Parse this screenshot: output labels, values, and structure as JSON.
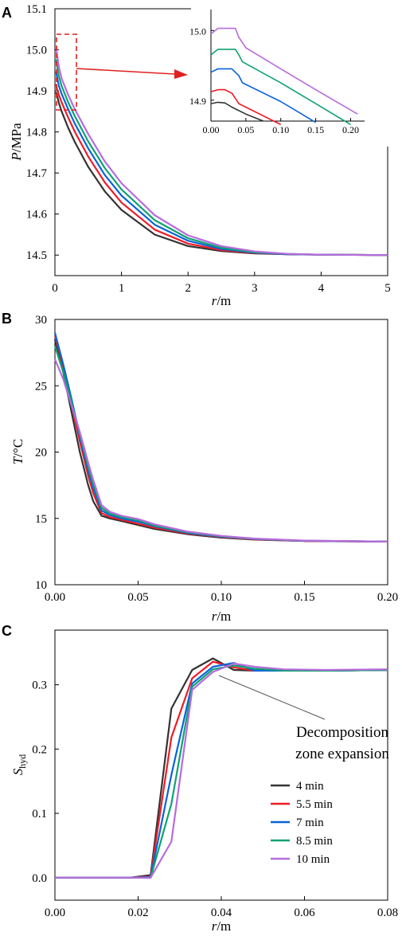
{
  "series_colors": [
    "#333333",
    "#ee1c25",
    "#0a63d8",
    "#0ea271",
    "#b86bdd"
  ],
  "panels": {
    "A": {
      "letter": "A",
      "xlabel_italic": "r",
      "xlabel_rest": "/m",
      "ylabel_italic": "P",
      "ylabel_rest": "/MPa"
    },
    "B": {
      "letter": "B",
      "xlabel_italic": "r",
      "xlabel_rest": "/m",
      "ylabel_italic": "T",
      "ylabel_rest": "/°C"
    },
    "C": {
      "letter": "C",
      "xlabel_italic": "r",
      "xlabel_rest": "/m",
      "ylabel_main": "S",
      "ylabel_sub": "hyd"
    }
  },
  "annotation": {
    "line1": "Decomposition",
    "line2": "zone expansion"
  },
  "chart_data": [
    {
      "id": "A",
      "type": "line",
      "xlim": [
        0,
        5
      ],
      "ylim": [
        14.45,
        15.1
      ],
      "xticks": [
        "0",
        "1",
        "2",
        "3",
        "4",
        "5"
      ],
      "yticks": [
        "14.5",
        "14.6",
        "14.7",
        "14.8",
        "14.9",
        "15.0",
        "15.1"
      ],
      "grid": false,
      "series": [
        {
          "name": "4 min",
          "x": [
            0,
            0.02,
            0.03,
            0.06,
            0.1,
            0.2,
            0.3,
            0.5,
            0.75,
            1,
            1.5,
            2,
            2.5,
            3,
            3.5,
            4,
            5
          ],
          "y": [
            14.895,
            14.895,
            14.89,
            14.87,
            14.85,
            14.81,
            14.775,
            14.715,
            14.655,
            14.61,
            14.55,
            14.522,
            14.51,
            14.504,
            14.502,
            14.501,
            14.5
          ]
        },
        {
          "name": "5.5 min",
          "x": [
            0,
            0.02,
            0.03,
            0.06,
            0.1,
            0.2,
            0.3,
            0.5,
            0.75,
            1,
            1.5,
            2,
            2.5,
            3,
            3.5,
            4,
            5
          ],
          "y": [
            14.915,
            14.915,
            14.905,
            14.89,
            14.872,
            14.835,
            14.8,
            14.74,
            14.677,
            14.628,
            14.562,
            14.528,
            14.512,
            14.505,
            14.502,
            14.501,
            14.5
          ]
        },
        {
          "name": "7 min",
          "x": [
            0,
            0.02,
            0.03,
            0.06,
            0.1,
            0.2,
            0.3,
            0.5,
            0.75,
            1,
            1.5,
            2,
            2.5,
            3,
            3.5,
            4,
            5
          ],
          "y": [
            14.945,
            14.945,
            14.935,
            14.912,
            14.893,
            14.855,
            14.82,
            14.76,
            14.695,
            14.645,
            14.574,
            14.535,
            14.515,
            14.506,
            14.502,
            14.501,
            14.5
          ]
        },
        {
          "name": "8.5 min",
          "x": [
            0,
            0.02,
            0.03,
            0.06,
            0.1,
            0.2,
            0.3,
            0.5,
            0.75,
            1,
            1.5,
            2,
            2.5,
            3,
            3.5,
            4,
            5
          ],
          "y": [
            14.975,
            14.975,
            14.962,
            14.935,
            14.912,
            14.872,
            14.838,
            14.777,
            14.712,
            14.66,
            14.585,
            14.541,
            14.518,
            14.507,
            14.503,
            14.501,
            14.5
          ]
        },
        {
          "name": "10 min",
          "x": [
            0,
            0.02,
            0.03,
            0.06,
            0.1,
            0.2,
            0.3,
            0.5,
            0.75,
            1,
            1.5,
            2,
            2.5,
            3,
            3.5,
            4,
            5
          ],
          "y": [
            15.005,
            15.005,
            14.99,
            14.958,
            14.93,
            14.89,
            14.855,
            14.795,
            14.728,
            14.675,
            14.597,
            14.548,
            14.522,
            14.509,
            14.503,
            14.501,
            14.5
          ]
        }
      ]
    },
    {
      "id": "A-inset",
      "type": "line",
      "xlim": [
        0,
        0.22
      ],
      "ylim": [
        14.87,
        15.03
      ],
      "xticks": [
        "0.00",
        "0.05",
        "0.10",
        "0.15",
        "0.20"
      ],
      "yticks": [
        "14.9",
        "15.0"
      ],
      "series": [
        {
          "name": "4 min",
          "x": [
            0,
            0.01,
            0.02,
            0.03,
            0.05,
            0.075
          ],
          "y": [
            14.895,
            14.897,
            14.896,
            14.89,
            14.88,
            14.87
          ]
        },
        {
          "name": "5.5 min",
          "x": [
            0,
            0.01,
            0.02,
            0.03,
            0.04,
            0.06,
            0.1
          ],
          "y": [
            14.912,
            14.915,
            14.915,
            14.91,
            14.895,
            14.885,
            14.865
          ]
        },
        {
          "name": "7 min",
          "x": [
            0,
            0.01,
            0.03,
            0.04,
            0.045,
            0.1,
            0.15
          ],
          "y": [
            14.94,
            14.945,
            14.945,
            14.935,
            14.925,
            14.898,
            14.868
          ]
        },
        {
          "name": "8.5 min",
          "x": [
            0,
            0.01,
            0.035,
            0.04,
            0.045,
            0.1,
            0.15,
            0.2
          ],
          "y": [
            14.965,
            14.973,
            14.973,
            14.965,
            14.955,
            14.925,
            14.895,
            14.865
          ]
        },
        {
          "name": "10 min",
          "x": [
            0,
            0.01,
            0.035,
            0.04,
            0.05,
            0.1,
            0.15,
            0.21
          ],
          "y": [
            14.995,
            15.003,
            15.003,
            14.99,
            14.975,
            14.945,
            14.915,
            14.88
          ]
        }
      ]
    },
    {
      "id": "B",
      "type": "line",
      "xlim": [
        0,
        0.2
      ],
      "ylim": [
        10,
        30
      ],
      "xticks": [
        "0.00",
        "0.05",
        "0.10",
        "0.15",
        "0.20"
      ],
      "yticks": [
        "10",
        "15",
        "20",
        "25",
        "30"
      ],
      "grid": false,
      "series": [
        {
          "name": "4 min",
          "x": [
            0,
            0.005,
            0.01,
            0.015,
            0.02,
            0.023,
            0.028,
            0.033,
            0.04,
            0.05,
            0.06,
            0.08,
            0.1,
            0.12,
            0.15,
            0.2
          ],
          "y": [
            28.5,
            26.0,
            23.0,
            20.0,
            17.5,
            16.3,
            15.2,
            15.0,
            14.8,
            14.5,
            14.2,
            13.8,
            13.55,
            13.4,
            13.3,
            13.25
          ]
        },
        {
          "name": "5.5 min",
          "x": [
            0,
            0.005,
            0.01,
            0.015,
            0.02,
            0.023,
            0.028,
            0.033,
            0.04,
            0.05,
            0.06,
            0.08,
            0.1,
            0.12,
            0.15,
            0.2
          ],
          "y": [
            28.8,
            26.4,
            23.6,
            20.8,
            18.2,
            16.9,
            15.4,
            15.1,
            14.9,
            14.6,
            14.3,
            13.85,
            13.6,
            13.42,
            13.3,
            13.25
          ]
        },
        {
          "name": "7 min",
          "x": [
            0,
            0.005,
            0.01,
            0.015,
            0.02,
            0.023,
            0.028,
            0.033,
            0.04,
            0.05,
            0.06,
            0.08,
            0.1,
            0.12,
            0.15,
            0.2
          ],
          "y": [
            29.0,
            26.6,
            24.0,
            21.2,
            18.6,
            17.3,
            15.6,
            15.25,
            15.0,
            14.75,
            14.4,
            13.9,
            13.62,
            13.44,
            13.31,
            13.25
          ]
        },
        {
          "name": "8.5 min",
          "x": [
            0,
            0.005,
            0.01,
            0.015,
            0.02,
            0.023,
            0.028,
            0.033,
            0.04,
            0.05,
            0.06,
            0.08,
            0.1,
            0.12,
            0.15,
            0.2
          ],
          "y": [
            28.0,
            26.0,
            23.8,
            21.4,
            18.9,
            17.6,
            15.8,
            15.35,
            15.1,
            14.85,
            14.45,
            13.95,
            13.65,
            13.46,
            13.32,
            13.25
          ]
        },
        {
          "name": "10 min",
          "x": [
            0,
            0.005,
            0.01,
            0.015,
            0.02,
            0.023,
            0.028,
            0.033,
            0.04,
            0.05,
            0.06,
            0.08,
            0.1,
            0.12,
            0.15,
            0.2
          ],
          "y": [
            27.0,
            25.5,
            23.5,
            21.5,
            19.2,
            17.9,
            16.0,
            15.5,
            15.2,
            14.95,
            14.55,
            14.0,
            13.68,
            13.48,
            13.33,
            13.25
          ]
        }
      ]
    },
    {
      "id": "C",
      "type": "line",
      "xlim": [
        0,
        0.08
      ],
      "ylim": [
        -0.035,
        0.385
      ],
      "xticks": [
        "0.00",
        "0.02",
        "0.04",
        "0.06",
        "0.08"
      ],
      "yticks": [
        "0.0",
        "0.1",
        "0.2",
        "0.3"
      ],
      "grid": false,
      "legend_position": "lower-right",
      "series": [
        {
          "name": "4 min",
          "x": [
            0,
            0.018,
            0.023,
            0.028,
            0.033,
            0.038,
            0.043,
            0.048,
            0.055,
            0.065,
            0.08
          ],
          "y": [
            0,
            0,
            0.004,
            0.263,
            0.323,
            0.341,
            0.323,
            0.322,
            0.322,
            0.322,
            0.323
          ]
        },
        {
          "name": "5.5 min",
          "x": [
            0,
            0.018,
            0.023,
            0.028,
            0.033,
            0.038,
            0.043,
            0.048,
            0.055,
            0.065,
            0.08
          ],
          "y": [
            0,
            0,
            0.002,
            0.218,
            0.31,
            0.336,
            0.327,
            0.322,
            0.322,
            0.322,
            0.323
          ]
        },
        {
          "name": "7 min",
          "x": [
            0,
            0.018,
            0.023,
            0.028,
            0.033,
            0.038,
            0.043,
            0.048,
            0.055,
            0.065,
            0.08
          ],
          "y": [
            0,
            0,
            0.001,
            0.16,
            0.302,
            0.328,
            0.334,
            0.322,
            0.322,
            0.322,
            0.323
          ]
        },
        {
          "name": "8.5 min",
          "x": [
            0,
            0.018,
            0.023,
            0.028,
            0.033,
            0.038,
            0.043,
            0.048,
            0.055,
            0.065,
            0.08
          ],
          "y": [
            0,
            0,
            0.0,
            0.115,
            0.297,
            0.324,
            0.33,
            0.325,
            0.322,
            0.322,
            0.323
          ]
        },
        {
          "name": "10 min",
          "x": [
            0,
            0.018,
            0.023,
            0.028,
            0.033,
            0.038,
            0.043,
            0.048,
            0.055,
            0.065,
            0.08
          ],
          "y": [
            0,
            0,
            0.0,
            0.056,
            0.292,
            0.32,
            0.333,
            0.328,
            0.324,
            0.323,
            0.324
          ]
        }
      ]
    }
  ]
}
